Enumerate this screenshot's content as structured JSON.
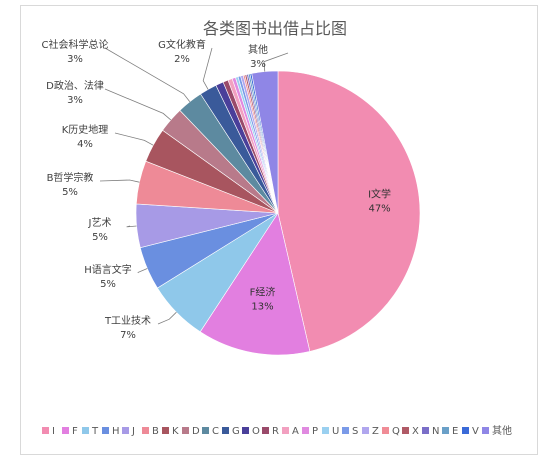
{
  "chart_data": {
    "type": "pie",
    "title": "各类图书出借占比图",
    "slices": [
      {
        "key": "I",
        "name": "I文学",
        "value": 47,
        "label": "47%",
        "color": "#f28cb1"
      },
      {
        "key": "F",
        "name": "F经济",
        "value": 13,
        "label": "13%",
        "color": "#e27fe0"
      },
      {
        "key": "T",
        "name": "T工业技术",
        "value": 7,
        "label": "7%",
        "color": "#8fc8ea"
      },
      {
        "key": "H",
        "name": "H语言文字",
        "value": 5,
        "label": "5%",
        "color": "#6a8fe0"
      },
      {
        "key": "J",
        "name": "J艺术",
        "value": 5,
        "label": "5%",
        "color": "#a79ae6"
      },
      {
        "key": "B",
        "name": "B哲学宗教",
        "value": 5,
        "label": "5%",
        "color": "#ee8a97"
      },
      {
        "key": "K",
        "name": "K历史地理",
        "value": 4,
        "label": "4%",
        "color": "#a8555f"
      },
      {
        "key": "D",
        "name": "D政治、法律",
        "value": 3,
        "label": "3%",
        "color": "#b87a8a"
      },
      {
        "key": "C",
        "name": "C社会科学总论",
        "value": 3,
        "label": "3%",
        "color": "#5d8aa0"
      },
      {
        "key": "G",
        "name": "G文化教育",
        "value": 2,
        "label": "2%",
        "color": "#3a5a9a"
      },
      {
        "key": "O",
        "name": "O",
        "value": 0.9,
        "label": "",
        "color": "#4a3f9a"
      },
      {
        "key": "R",
        "name": "R",
        "value": 0.6,
        "label": "",
        "color": "#9a4a6a"
      },
      {
        "key": "A",
        "name": "A",
        "value": 0.5,
        "label": "",
        "color": "#f2a0c0"
      },
      {
        "key": "P",
        "name": "P",
        "value": 0.4,
        "label": "",
        "color": "#e08ae0"
      },
      {
        "key": "U",
        "name": "U",
        "value": 0.3,
        "label": "",
        "color": "#9ad0f0"
      },
      {
        "key": "S",
        "name": "S",
        "value": 0.3,
        "label": "",
        "color": "#7a9ae8"
      },
      {
        "key": "Z",
        "name": "Z",
        "value": 0.3,
        "label": "",
        "color": "#b0a6ee"
      },
      {
        "key": "Q",
        "name": "Q",
        "value": 0.2,
        "label": "",
        "color": "#f08c96"
      },
      {
        "key": "X",
        "name": "X",
        "value": 0.2,
        "label": "",
        "color": "#b05a66"
      },
      {
        "key": "N",
        "name": "N",
        "value": 0.2,
        "label": "",
        "color": "#7a6ec8"
      },
      {
        "key": "E",
        "name": "E",
        "value": 0.2,
        "label": "",
        "color": "#6aa0c8"
      },
      {
        "key": "V",
        "name": "V",
        "value": 0.2,
        "label": "",
        "color": "#3a6ad8"
      },
      {
        "key": "其他",
        "name": "其他",
        "value": 3,
        "label": "3%",
        "color": "#8f86e6"
      }
    ],
    "legend_position": "bottom"
  }
}
